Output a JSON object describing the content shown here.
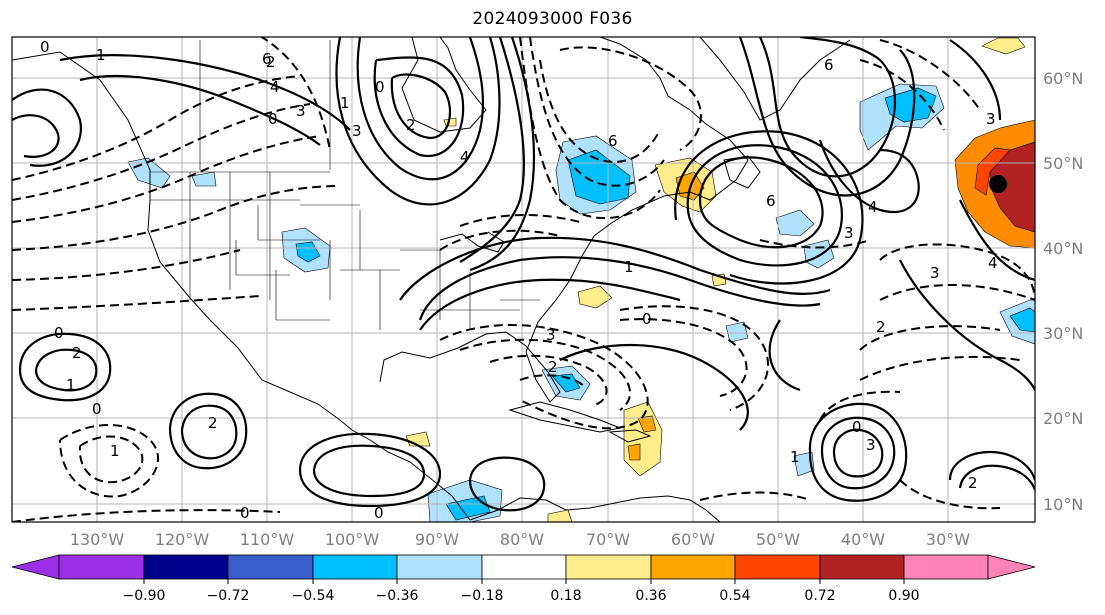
{
  "title": "2024093000 F036",
  "map": {
    "projection": "lat-lon",
    "lon_range_deg": [
      -140,
      -20
    ],
    "lat_range_deg": [
      7,
      65
    ],
    "lat_labels": [
      "10°N",
      "20°N",
      "30°N",
      "40°N",
      "50°N",
      "60°N"
    ],
    "lon_labels": [
      "130°W",
      "120°W",
      "110°W",
      "100°W",
      "90°W",
      "80°W",
      "70°W",
      "60°W",
      "50°W",
      "40°W",
      "30°W"
    ],
    "gridlines": true,
    "contour_labels": [
      "0",
      "1",
      "2",
      "3",
      "4",
      "6",
      "0",
      "1",
      "2",
      "3",
      "4",
      "6",
      "0",
      "1",
      "2",
      "3",
      "0",
      "1",
      "2",
      "3",
      "4",
      "6",
      "0",
      "0",
      "0",
      "1",
      "2",
      "3",
      "0",
      "3",
      "2",
      "3",
      "4",
      "6",
      "0",
      "1",
      "2"
    ],
    "marker": {
      "name": "black-dot",
      "lon_deg": -29,
      "lat_deg": 48
    }
  },
  "colorbar": {
    "colors": [
      "#9b30e8",
      "#00008b",
      "#3a5fcd",
      "#00bfff",
      "#b0e2ff",
      "#ffffff",
      "#ffec8b",
      "#ffa500",
      "#ff4500",
      "#b22222",
      "#ff83b4"
    ],
    "tick_labels": [
      "−0.90",
      "−0.72",
      "−0.54",
      "−0.36",
      "−0.18",
      "0.18",
      "0.36",
      "0.54",
      "0.72",
      "0.90"
    ],
    "extend": "both"
  }
}
